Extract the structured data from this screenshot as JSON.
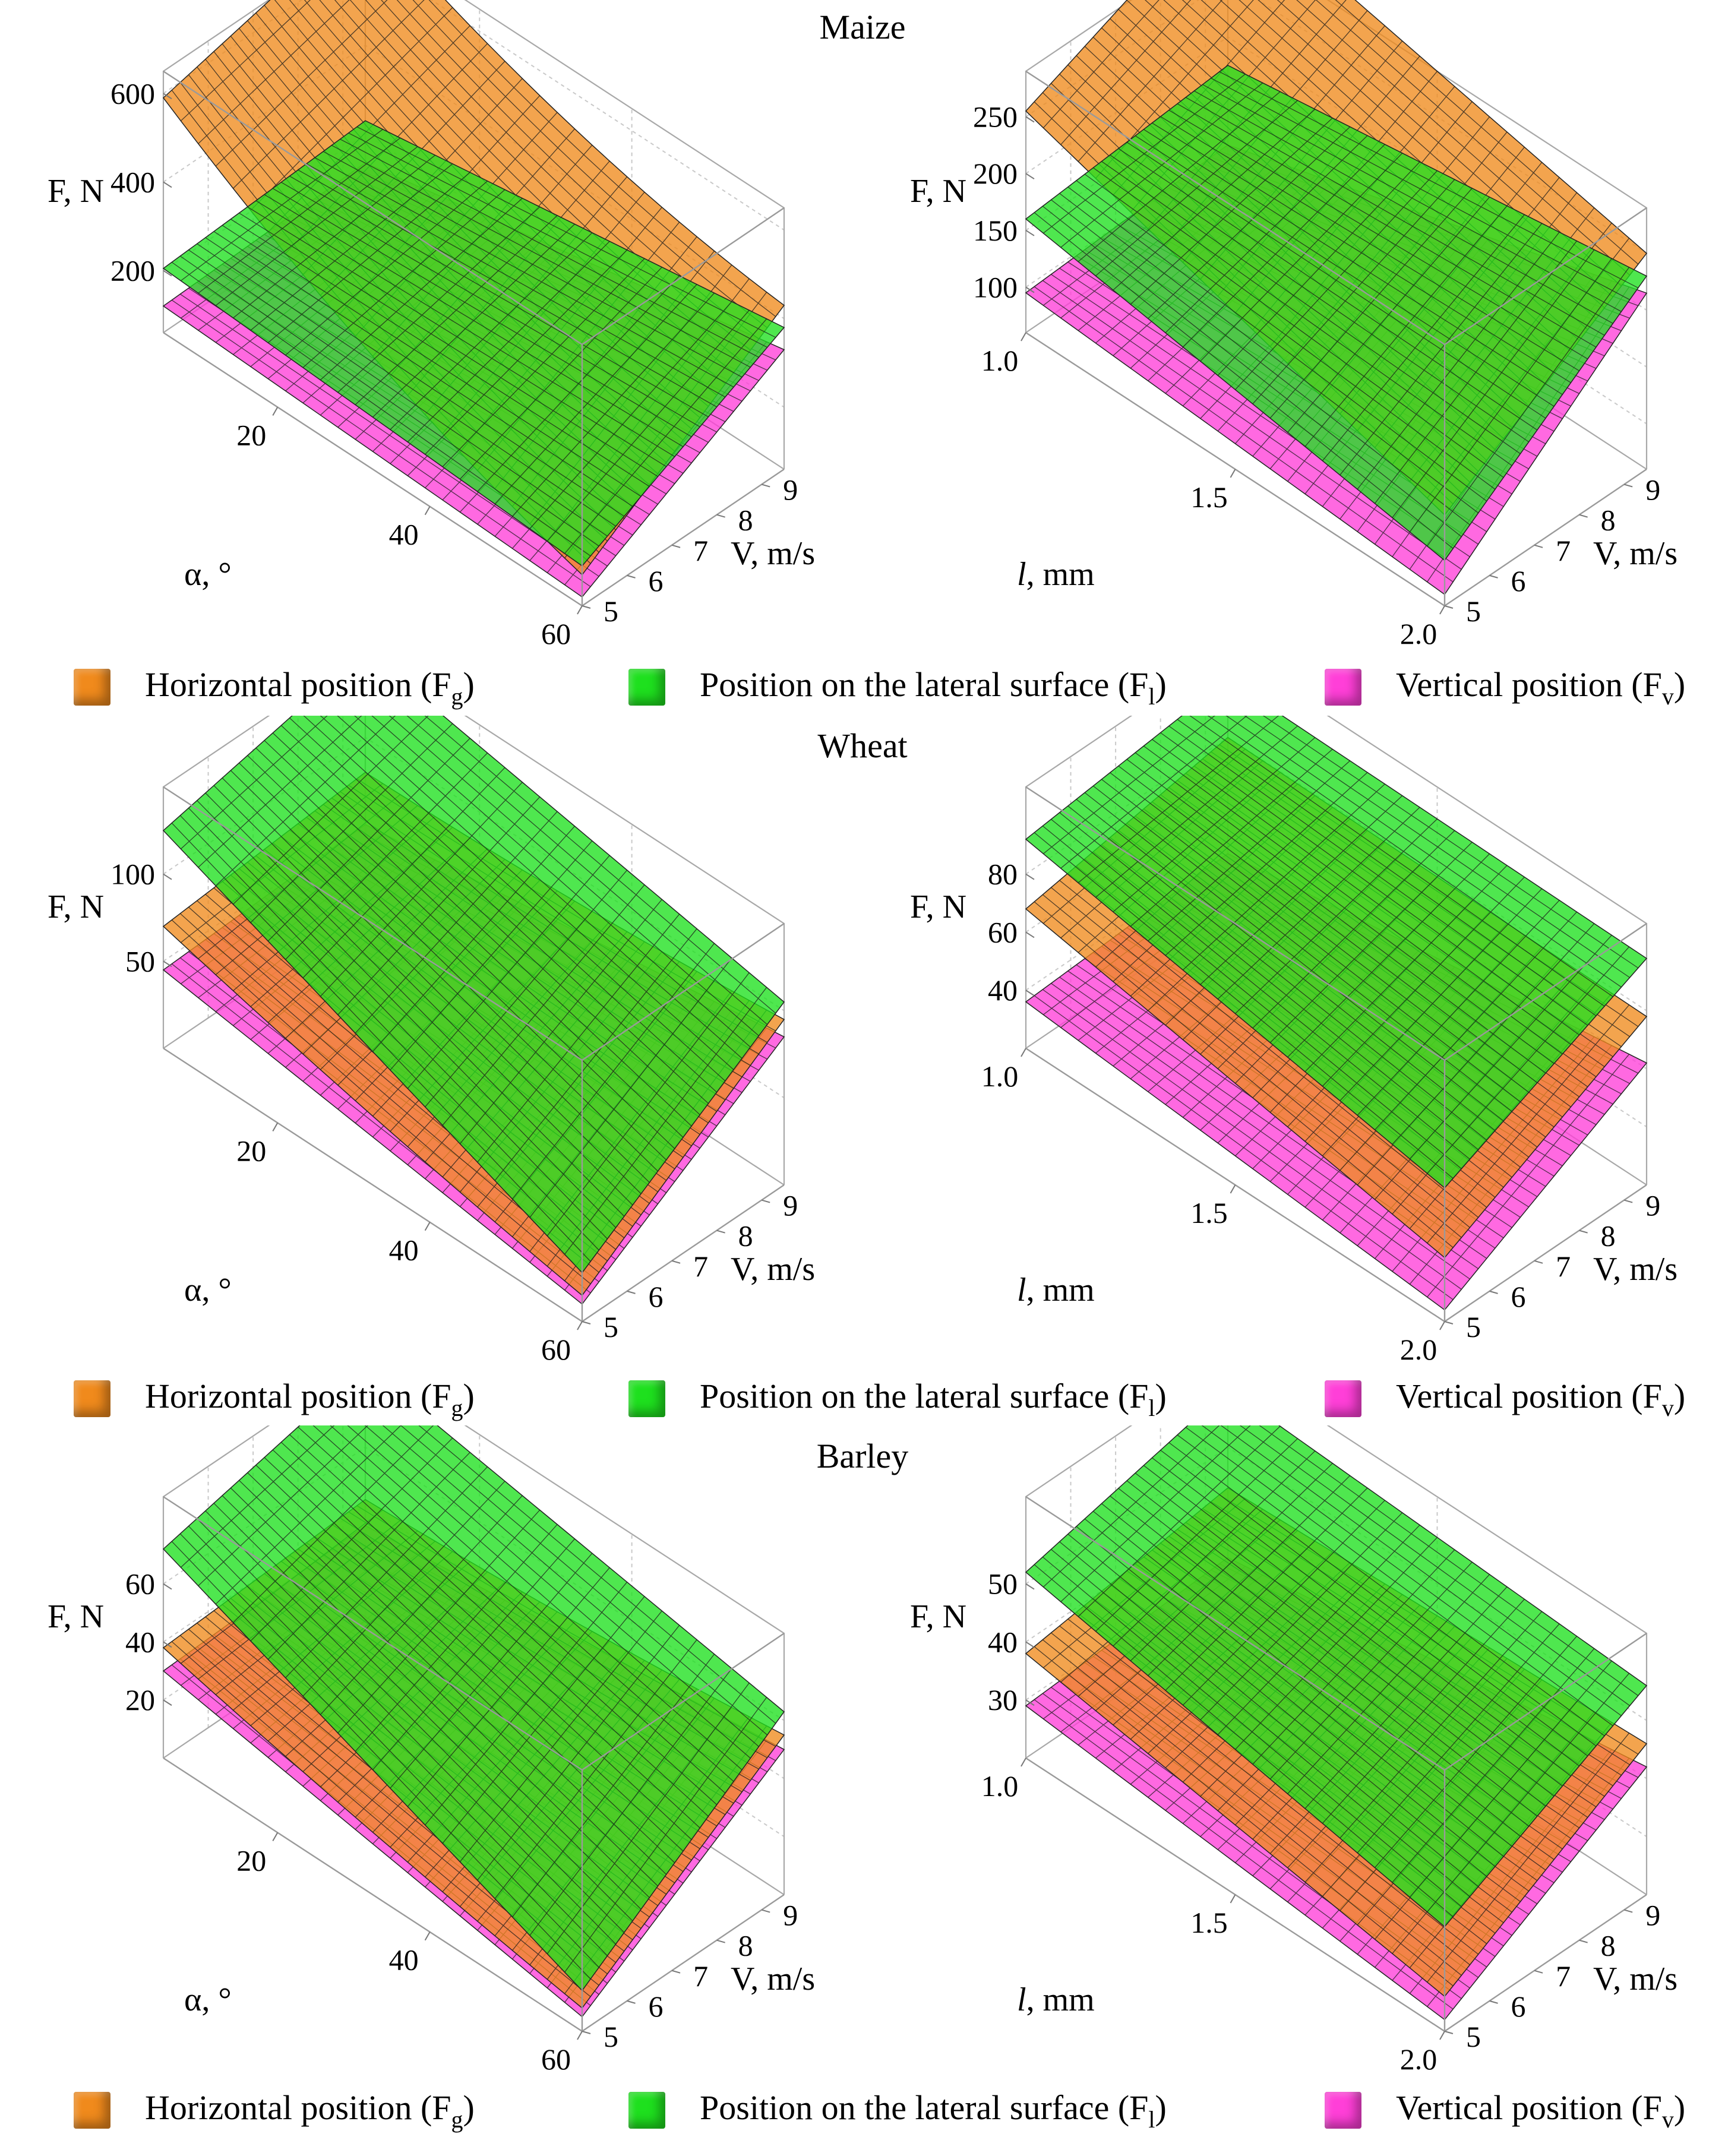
{
  "legend": {
    "horizontal": {
      "label": "Horizontal position (F",
      "sub": "g",
      "close": ")",
      "color": "#f08a1c"
    },
    "lateral": {
      "label": "Position on the lateral surface (F",
      "sub": "l",
      "close": ")",
      "color": "#1ee01e"
    },
    "vertical": {
      "label": "Vertical position (F",
      "sub": "v",
      "close": ")",
      "color": "#ff3fd8"
    }
  },
  "rows": [
    {
      "title": "Maize"
    },
    {
      "title": "Wheat"
    },
    {
      "title": "Barley"
    }
  ],
  "chart_data": [
    {
      "type": "surface3d",
      "crop": "Maize",
      "variant": "alpha",
      "zlabel": "F, N",
      "xlabel": "α, °",
      "ylabel": "V, m/s",
      "xrange": [
        5,
        60
      ],
      "yrange": [
        5,
        9.5
      ],
      "zrange": [
        60,
        650
      ],
      "xticks": [
        20,
        40,
        60
      ],
      "yticks": [
        5,
        6,
        7,
        8,
        9
      ],
      "zticks": [
        200,
        400,
        600
      ],
      "series": [
        {
          "name": "Horizontal position (Fg)",
          "color": "#f08a1c",
          "corners": {
            "x_lo_y_lo": 590,
            "x_lo_y_hi": 700,
            "x_hi_y_lo": 130,
            "x_hi_y_hi": 430
          },
          "curvature_x": 180
        },
        {
          "name": "Position on the lateral surface (Fl)",
          "color": "#1ee01e",
          "corners": {
            "x_lo_y_lo": 205,
            "x_lo_y_hi": 230,
            "x_hi_y_lo": 150,
            "x_hi_y_hi": 380
          },
          "curvature_x": 0
        },
        {
          "name": "Vertical position (Fv)",
          "color": "#ff3fd8",
          "corners": {
            "x_lo_y_lo": 120,
            "x_lo_y_hi": 135,
            "x_hi_y_lo": 80,
            "x_hi_y_hi": 330
          },
          "curvature_x": 0
        }
      ]
    },
    {
      "type": "surface3d",
      "crop": "Maize",
      "variant": "length",
      "zlabel": "F, N",
      "xlabel": "l, mm",
      "ylabel": "V, m/s",
      "xrange": [
        1.0,
        2.0
      ],
      "yrange": [
        5,
        9.5
      ],
      "zrange": [
        60,
        290
      ],
      "xticks": [
        1.0,
        1.5,
        2.0
      ],
      "yticks": [
        5,
        6,
        7,
        8,
        9
      ],
      "zticks": [
        100,
        150,
        200,
        250
      ],
      "series": [
        {
          "name": "Horizontal position (Fg)",
          "color": "#f08a1c",
          "corners": {
            "x_lo_y_lo": 255,
            "x_lo_y_hi": 330,
            "x_hi_y_lo": 140,
            "x_hi_y_hi": 250
          },
          "curvature_x": 0
        },
        {
          "name": "Position on the lateral surface (Fl)",
          "color": "#1ee01e",
          "corners": {
            "x_lo_y_lo": 160,
            "x_lo_y_hi": 175,
            "x_hi_y_lo": 100,
            "x_hi_y_hi": 230
          },
          "curvature_x": 0
        },
        {
          "name": "Vertical position (Fv)",
          "color": "#ff3fd8",
          "corners": {
            "x_lo_y_lo": 95,
            "x_lo_y_hi": 105,
            "x_hi_y_lo": 70,
            "x_hi_y_hi": 215
          },
          "curvature_x": 0
        }
      ]
    },
    {
      "type": "surface3d",
      "crop": "Wheat",
      "variant": "alpha",
      "zlabel": "F, N",
      "xlabel": "α, °",
      "ylabel": "V, m/s",
      "xrange": [
        5,
        60
      ],
      "yrange": [
        5,
        9.5
      ],
      "zrange": [
        0,
        150
      ],
      "xticks": [
        20,
        40,
        60
      ],
      "yticks": [
        5,
        6,
        7,
        8,
        9
      ],
      "zticks": [
        50,
        100
      ],
      "series": [
        {
          "name": "Horizontal position (Fg)",
          "color": "#f08a1c",
          "corners": {
            "x_lo_y_lo": 70,
            "x_lo_y_hi": 80,
            "x_hi_y_lo": 15,
            "x_hi_y_hi": 95
          },
          "curvature_x": 12
        },
        {
          "name": "Position on the lateral surface (Fl)",
          "color": "#1ee01e",
          "corners": {
            "x_lo_y_lo": 125,
            "x_lo_y_hi": 150,
            "x_hi_y_lo": 28,
            "x_hi_y_hi": 105
          },
          "curvature_x": 0
        },
        {
          "name": "Vertical position (Fv)",
          "color": "#ff3fd8",
          "corners": {
            "x_lo_y_lo": 45,
            "x_lo_y_hi": 50,
            "x_hi_y_lo": 10,
            "x_hi_y_hi": 85
          },
          "curvature_x": 0
        }
      ]
    },
    {
      "type": "surface3d",
      "crop": "Wheat",
      "variant": "length",
      "zlabel": "F, N",
      "xlabel": "l, mm",
      "ylabel": "V, m/s",
      "xrange": [
        1.0,
        2.0
      ],
      "yrange": [
        5,
        9.5
      ],
      "zrange": [
        20,
        110
      ],
      "xticks": [
        1.0,
        1.5,
        2.0
      ],
      "yticks": [
        5,
        6,
        7,
        8,
        9
      ],
      "zticks": [
        40,
        60,
        80
      ],
      "series": [
        {
          "name": "Horizontal position (Fg)",
          "color": "#f08a1c",
          "corners": {
            "x_lo_y_lo": 68,
            "x_lo_y_hi": 80,
            "x_hi_y_lo": 42,
            "x_hi_y_hi": 78
          },
          "curvature_x": 0
        },
        {
          "name": "Position on the lateral surface (Fl)",
          "color": "#1ee01e",
          "corners": {
            "x_lo_y_lo": 92,
            "x_lo_y_hi": 100,
            "x_hi_y_lo": 66,
            "x_hi_y_hi": 98
          },
          "curvature_x": 0
        },
        {
          "name": "Vertical position (Fv)",
          "color": "#ff3fd8",
          "corners": {
            "x_lo_y_lo": 36,
            "x_lo_y_hi": 40,
            "x_hi_y_lo": 24,
            "x_hi_y_hi": 62
          },
          "curvature_x": 0
        }
      ]
    },
    {
      "type": "surface3d",
      "crop": "Barley",
      "variant": "alpha",
      "zlabel": "F, N",
      "xlabel": "α, °",
      "ylabel": "V, m/s",
      "xrange": [
        5,
        60
      ],
      "yrange": [
        5,
        9.5
      ],
      "zrange": [
        0,
        90
      ],
      "xticks": [
        20,
        40,
        60
      ],
      "yticks": [
        5,
        6,
        7,
        8,
        9
      ],
      "zticks": [
        20,
        40,
        60
      ],
      "series": [
        {
          "name": "Horizontal position (Fg)",
          "color": "#f08a1c",
          "corners": {
            "x_lo_y_lo": 38,
            "x_lo_y_hi": 42,
            "x_hi_y_lo": 8,
            "x_hi_y_hi": 55
          },
          "curvature_x": 6
        },
        {
          "name": "Position on the lateral surface (Fl)",
          "color": "#1ee01e",
          "corners": {
            "x_lo_y_lo": 72,
            "x_lo_y_hi": 88,
            "x_hi_y_lo": 14,
            "x_hi_y_hi": 63
          },
          "curvature_x": 0
        },
        {
          "name": "Vertical position (Fv)",
          "color": "#ff3fd8",
          "corners": {
            "x_lo_y_lo": 30,
            "x_lo_y_hi": 33,
            "x_hi_y_lo": 5,
            "x_hi_y_hi": 50
          },
          "curvature_x": 0
        }
      ]
    },
    {
      "type": "surface3d",
      "crop": "Barley",
      "variant": "length",
      "zlabel": "F, N",
      "xlabel": "l, mm",
      "ylabel": "V, m/s",
      "xrange": [
        1.0,
        2.0
      ],
      "yrange": [
        5,
        9.5
      ],
      "zrange": [
        20,
        65
      ],
      "xticks": [
        1.0,
        1.5,
        2.0
      ],
      "yticks": [
        5,
        6,
        7,
        8,
        9
      ],
      "zticks": [
        30,
        40,
        50
      ],
      "series": [
        {
          "name": "Horizontal position (Fg)",
          "color": "#f08a1c",
          "corners": {
            "x_lo_y_lo": 38,
            "x_lo_y_hi": 43,
            "x_hi_y_lo": 26,
            "x_hi_y_hi": 46
          },
          "curvature_x": 0
        },
        {
          "name": "Position on the lateral surface (Fl)",
          "color": "#1ee01e",
          "corners": {
            "x_lo_y_lo": 52,
            "x_lo_y_hi": 60,
            "x_hi_y_lo": 38,
            "x_hi_y_hi": 56
          },
          "curvature_x": 0
        },
        {
          "name": "Vertical position (Fv)",
          "color": "#ff3fd8",
          "corners": {
            "x_lo_y_lo": 29,
            "x_lo_y_hi": 31,
            "x_hi_y_lo": 22,
            "x_hi_y_hi": 42
          },
          "curvature_x": 0
        }
      ]
    }
  ]
}
